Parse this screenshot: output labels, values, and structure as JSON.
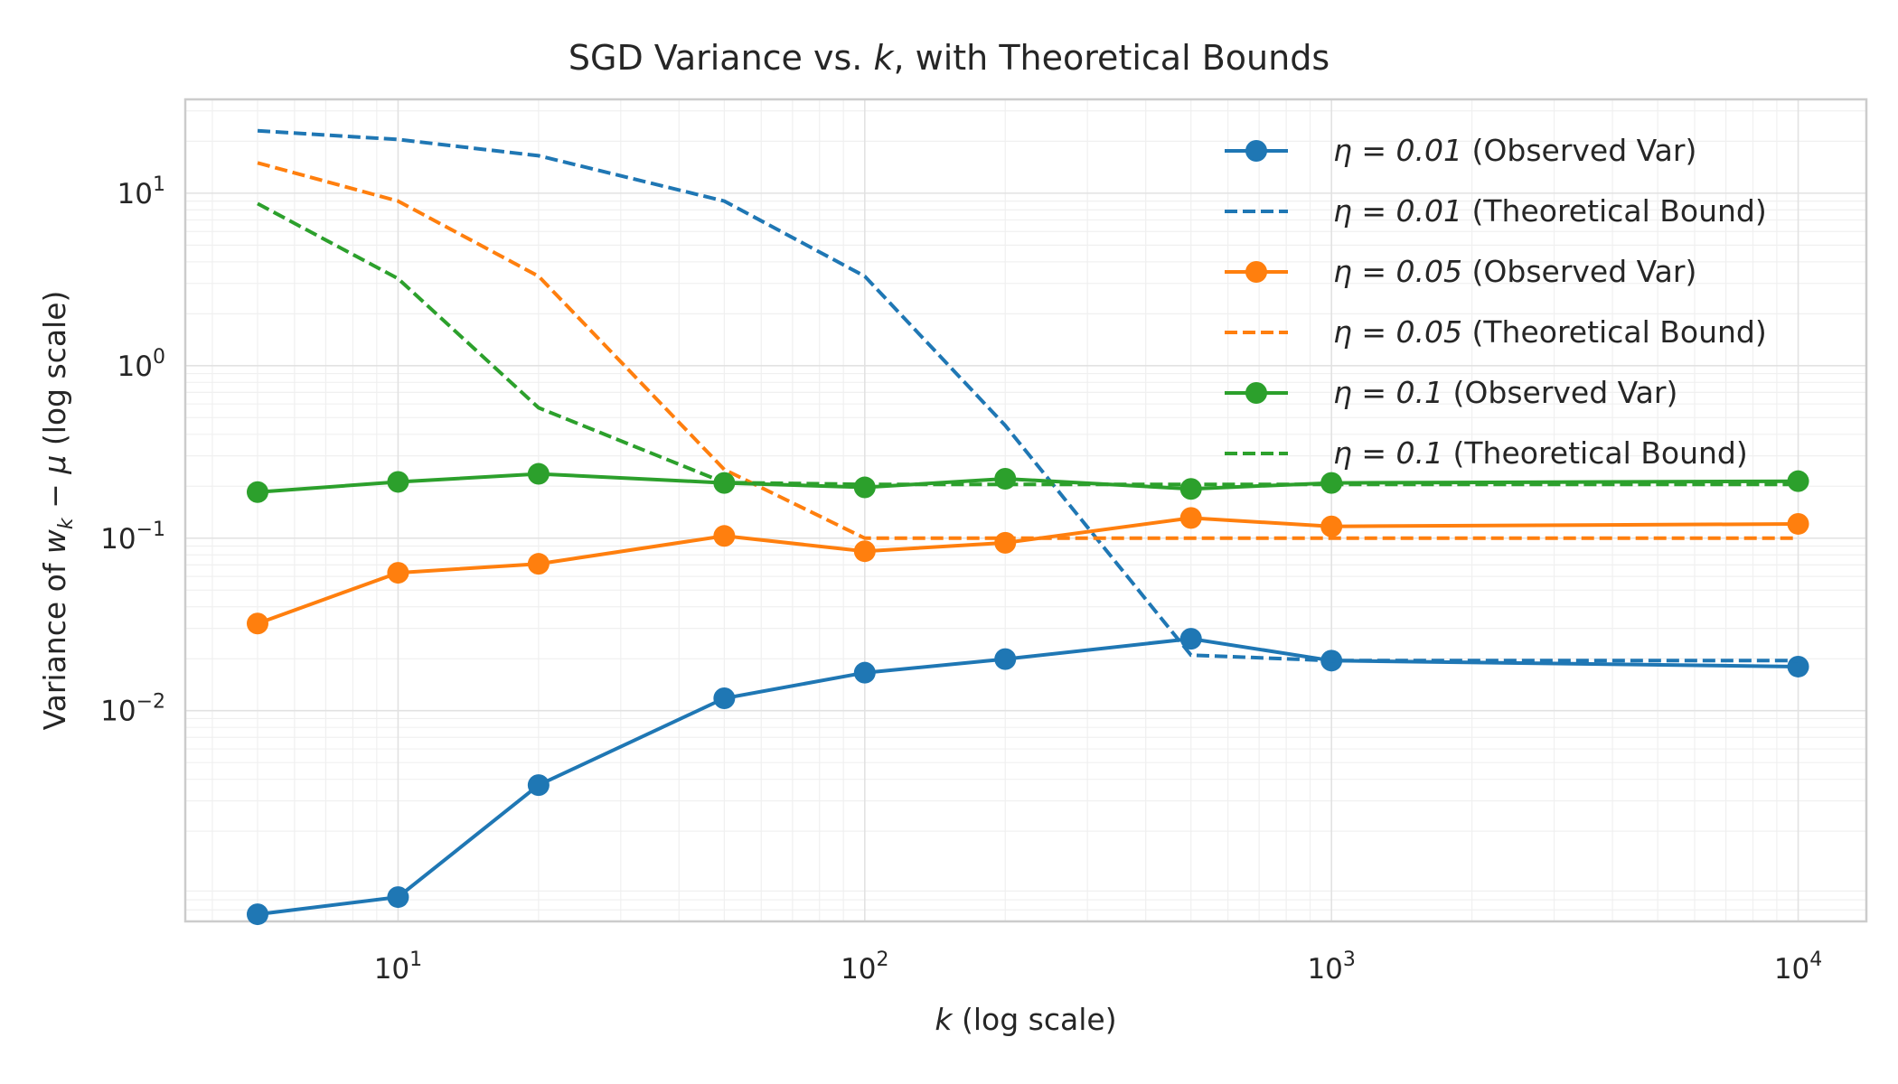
{
  "chart_data": {
    "type": "line",
    "title": "SGD Variance vs. k, with Theoretical Bounds",
    "title_parts": [
      "SGD Variance vs. ",
      "k",
      ", with Theoretical Bounds"
    ],
    "xlabel": "k (log scale)",
    "xlabel_parts": [
      "k",
      " (log scale)"
    ],
    "ylabel": "Variance of w_k − μ (log scale)",
    "ylabel_parts": [
      "Variance of ",
      "w",
      "k",
      " − ",
      "μ",
      " (log scale)"
    ],
    "x_scale": "log",
    "y_scale": "log",
    "xlim": [
      3.5,
      14000
    ],
    "ylim": [
      0.0006,
      35
    ],
    "x_ticks": [
      {
        "value": 10,
        "base": "10",
        "exp": "1"
      },
      {
        "value": 100,
        "base": "10",
        "exp": "2"
      },
      {
        "value": 1000,
        "base": "10",
        "exp": "3"
      },
      {
        "value": 10000,
        "base": "10",
        "exp": "4"
      }
    ],
    "y_ticks": [
      {
        "value": 0.01,
        "base": "10",
        "exp": "−2"
      },
      {
        "value": 0.1,
        "base": "10",
        "exp": "−1"
      },
      {
        "value": 1,
        "base": "10",
        "exp": "0"
      },
      {
        "value": 10,
        "base": "10",
        "exp": "1"
      }
    ],
    "grid": true,
    "legend_position": "top-right",
    "x": [
      5,
      10,
      20,
      50,
      100,
      200,
      500,
      1000,
      10000
    ],
    "series": [
      {
        "name": "η = 0.01 (Observed Var)",
        "eta": "η = 0.01",
        "label_rest": " (Observed Var)",
        "style": "solid-marker",
        "color": "#1f77b4",
        "values": [
          0.00066,
          0.00083,
          0.0037,
          0.0118,
          0.0166,
          0.0199,
          0.0261,
          0.0195,
          0.018
        ]
      },
      {
        "name": "η = 0.01 (Theoretical Bound)",
        "eta": "η = 0.01",
        "label_rest": " (Theoretical Bound)",
        "style": "dashed",
        "color": "#1f77b4",
        "values": [
          23,
          20.5,
          16.5,
          9,
          3.3,
          0.45,
          0.021,
          0.0195,
          0.0195
        ]
      },
      {
        "name": "η = 0.05 (Observed Var)",
        "eta": "η = 0.05",
        "label_rest": " (Observed Var)",
        "style": "solid-marker",
        "color": "#ff7f0e",
        "values": [
          0.032,
          0.063,
          0.071,
          0.103,
          0.084,
          0.094,
          0.131,
          0.117,
          0.121
        ]
      },
      {
        "name": "η = 0.05 (Theoretical Bound)",
        "eta": "η = 0.05",
        "label_rest": " (Theoretical Bound)",
        "style": "dashed",
        "color": "#ff7f0e",
        "values": [
          15,
          9,
          3.3,
          0.25,
          0.1,
          0.1,
          0.1,
          0.1,
          0.1
        ]
      },
      {
        "name": "η = 0.1 (Observed Var)",
        "eta": "η = 0.1",
        "label_rest": " (Observed Var)",
        "style": "solid-marker",
        "color": "#2ca02c",
        "values": [
          0.185,
          0.212,
          0.236,
          0.209,
          0.197,
          0.221,
          0.193,
          0.209,
          0.214
        ]
      },
      {
        "name": "η = 0.1 (Theoretical Bound)",
        "eta": "η = 0.1",
        "label_rest": " (Theoretical Bound)",
        "style": "dashed",
        "color": "#2ca02c",
        "values": [
          8.7,
          3.2,
          0.57,
          0.21,
          0.205,
          0.205,
          0.205,
          0.205,
          0.205
        ]
      }
    ]
  }
}
